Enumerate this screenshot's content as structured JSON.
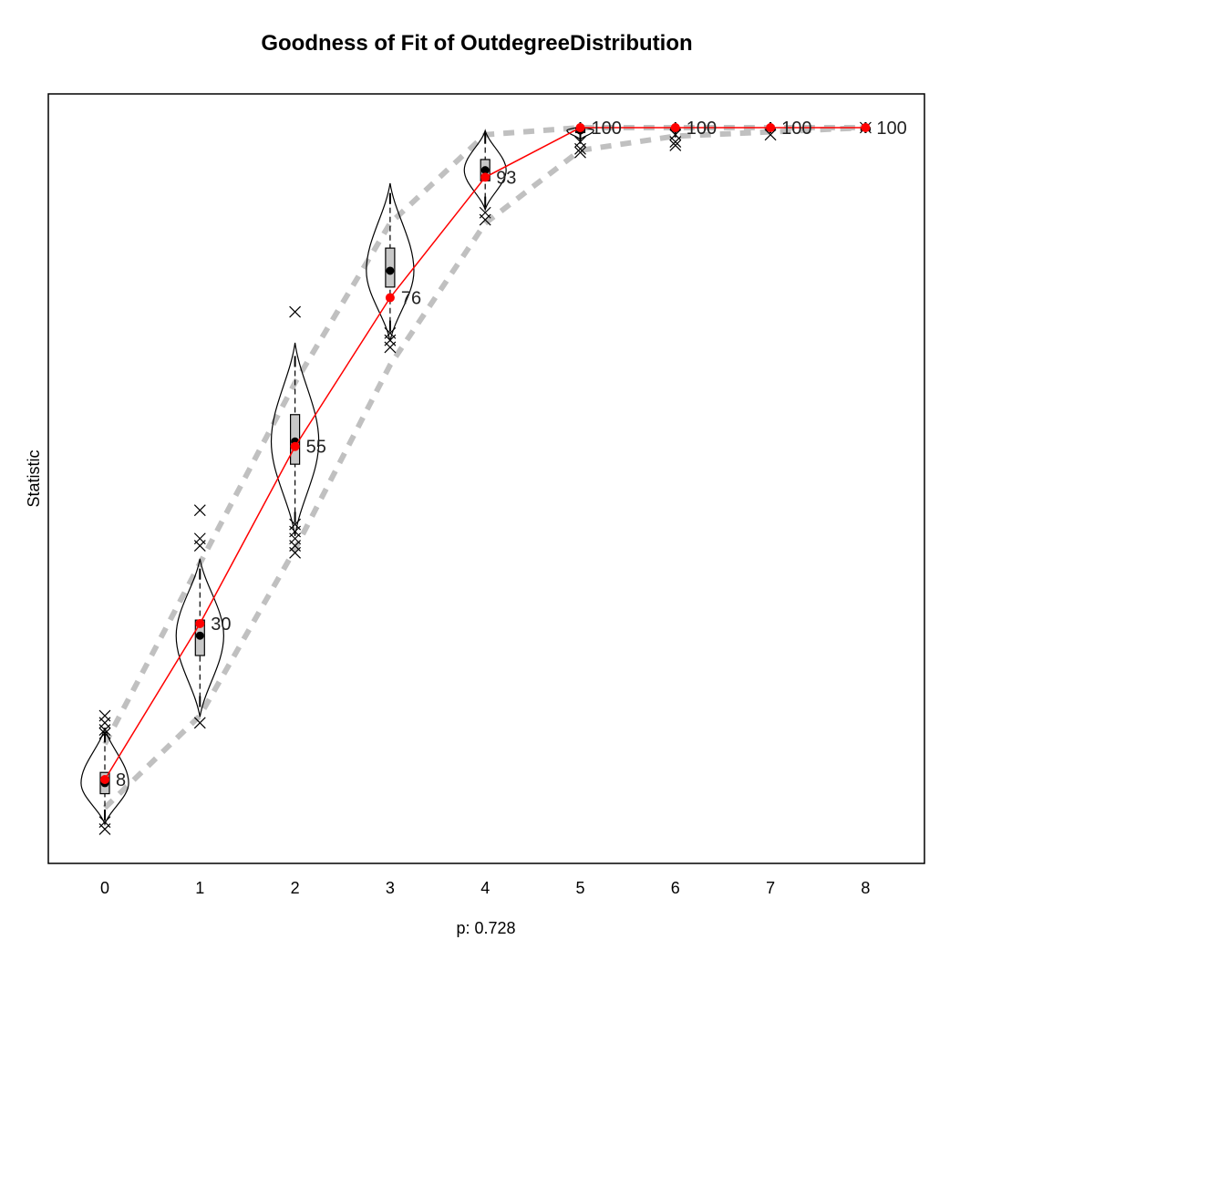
{
  "chart_data": {
    "type": "line",
    "title": "Goodness of Fit of OutdegreeDistribution",
    "xlabel": "p: 0.728",
    "ylabel": "Statistic",
    "categories": [
      "0",
      "1",
      "2",
      "3",
      "4",
      "5",
      "6",
      "7",
      "8"
    ],
    "ylim": [
      -3.5,
      103
    ],
    "grid": false,
    "legend": "none",
    "colors": {
      "observed": "#ff0000",
      "envelope": "#c0c0c0",
      "box_fill": "#c8c8c8",
      "outline": "#000000"
    },
    "observed": {
      "values": [
        8,
        30,
        55,
        76,
        93,
        100,
        100,
        100,
        100
      ],
      "labels": [
        "8",
        "30",
        "55",
        "76",
        "93",
        "100",
        "100",
        "100",
        "100"
      ]
    },
    "simulated": {
      "mean": [
        7.5,
        28.3,
        55.7,
        79.8,
        94.0,
        99.6,
        99.9,
        100,
        100
      ],
      "q1": [
        6.0,
        25.5,
        52.5,
        77.5,
        92.5,
        99.3,
        100,
        100,
        100
      ],
      "q3": [
        9.0,
        30.5,
        59.5,
        83.0,
        95.5,
        100,
        100,
        100,
        100
      ],
      "whisker_low": [
        3.0,
        19.0,
        45.0,
        72.0,
        89.5,
        98.5,
        99.4,
        100,
        100
      ],
      "whisker_high": [
        14.0,
        37.0,
        67.0,
        90.0,
        98.5,
        100,
        100,
        100,
        100
      ],
      "envelope_low": [
        4.0,
        17.0,
        40.5,
        66.5,
        86.5,
        96.8,
        98.8,
        99.4,
        100
      ],
      "envelope_high": [
        13.0,
        38.5,
        64.0,
        86.5,
        99.0,
        100,
        100,
        100,
        100
      ],
      "violin_width": [
        0.25,
        0.25,
        0.25,
        0.25,
        0.22,
        0.14,
        0.04,
        0.02,
        0.02
      ],
      "outliers": [
        [
          0,
          17.0
        ],
        [
          0,
          16.0
        ],
        [
          0,
          15.0
        ],
        [
          0,
          14.5
        ],
        [
          0,
          1.0
        ],
        [
          0,
          2.0
        ],
        [
          1,
          46.0
        ],
        [
          1,
          42.0
        ],
        [
          1,
          41.0
        ],
        [
          1,
          16.0
        ],
        [
          2,
          74.0
        ],
        [
          2,
          44.0
        ],
        [
          2,
          43.0
        ],
        [
          2,
          42.0
        ],
        [
          2,
          41.0
        ],
        [
          2,
          40.0
        ],
        [
          3,
          71.0
        ],
        [
          3,
          70.0
        ],
        [
          3,
          69.0
        ],
        [
          4,
          88.0
        ],
        [
          4,
          87.0
        ],
        [
          5,
          98.0
        ],
        [
          5,
          97.0
        ],
        [
          5,
          96.5
        ],
        [
          6,
          99.0
        ],
        [
          6,
          98.0
        ],
        [
          6,
          97.5
        ],
        [
          7,
          99.0
        ],
        [
          8,
          100
        ]
      ]
    }
  }
}
